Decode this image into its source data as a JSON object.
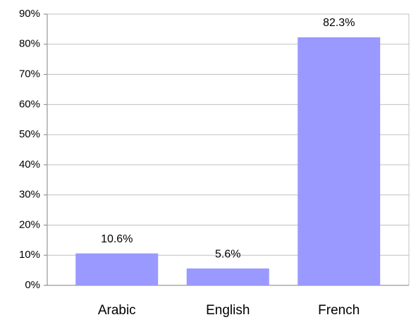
{
  "chart_data": {
    "type": "bar",
    "categories": [
      "Arabic",
      "English",
      "French"
    ],
    "values": [
      10.6,
      5.6,
      82.3
    ],
    "value_labels": [
      "10.6%",
      "5.6%",
      "82.3%"
    ],
    "color": "#9999ff",
    "ylim": [
      0,
      90
    ],
    "yticks": [
      {
        "value": 0,
        "label": "0%"
      },
      {
        "value": 10,
        "label": "10%"
      },
      {
        "value": 20,
        "label": "20%"
      },
      {
        "value": 30,
        "label": "30%"
      },
      {
        "value": 40,
        "label": "40%"
      },
      {
        "value": 50,
        "label": "50%"
      },
      {
        "value": 60,
        "label": "60%"
      },
      {
        "value": 70,
        "label": "70%"
      },
      {
        "value": 80,
        "label": "80%"
      },
      {
        "value": 90,
        "label": "90%"
      }
    ],
    "grid": true
  }
}
